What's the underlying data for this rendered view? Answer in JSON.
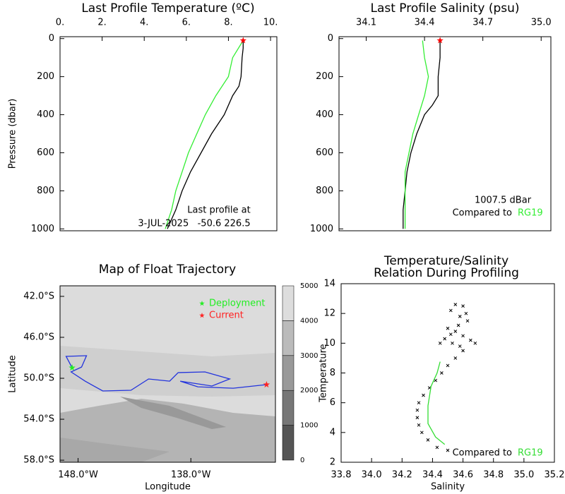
{
  "chart_data": [
    {
      "type": "line",
      "title": "Last Profile Temperature (ºC)",
      "y_label": "Pressure (dbar)",
      "xlim": [
        0,
        10.3
      ],
      "ylim": [
        1010,
        -10
      ],
      "xticks": [
        {
          "value": 0,
          "label": "0."
        },
        {
          "value": 2,
          "label": "2."
        },
        {
          "value": 4,
          "label": "4."
        },
        {
          "value": 6,
          "label": "6."
        },
        {
          "value": 8,
          "label": "8."
        },
        {
          "value": 10,
          "label": "10."
        }
      ],
      "yticks": [
        0,
        200,
        400,
        600,
        800,
        1000
      ],
      "series": [
        {
          "color": "#000000",
          "x": [
            8.7,
            8.7,
            8.65,
            8.6,
            8.5,
            8.2,
            7.8,
            7.2,
            6.7,
            6.2,
            5.8,
            5.5,
            5.1
          ],
          "y": [
            10,
            50,
            100,
            200,
            250,
            300,
            400,
            500,
            600,
            700,
            800,
            900,
            1000
          ]
        },
        {
          "color": "#33ee33",
          "x": [
            8.7,
            8.2,
            8.0,
            7.4,
            6.9,
            6.5,
            6.1,
            5.8,
            5.5,
            5.3,
            5.0
          ],
          "y": [
            10,
            100,
            200,
            300,
            400,
            500,
            600,
            700,
            800,
            900,
            1000
          ]
        }
      ],
      "current_point": {
        "x": 8.7,
        "y": 10,
        "color": "#ff0000"
      },
      "annotations": [
        "Last profile at",
        "3-JUL-2025   -50.6 226.5"
      ]
    },
    {
      "type": "line",
      "title": "Last Profile Salinity (psu)",
      "xlim": [
        33.96,
        35.05
      ],
      "ylim": [
        1010,
        -10
      ],
      "xticks": [
        34.1,
        34.4,
        34.7,
        {
          "value": 35.0,
          "label": "35.0"
        }
      ],
      "yticks": [
        0,
        200,
        400,
        600,
        800,
        1000
      ],
      "series": [
        {
          "color": "#000000",
          "x": [
            34.48,
            34.48,
            34.47,
            34.47,
            34.44,
            34.4,
            34.36,
            34.33,
            34.31,
            34.3,
            34.29,
            34.29
          ],
          "y": [
            10,
            100,
            200,
            300,
            350,
            400,
            500,
            600,
            700,
            800,
            900,
            1000
          ]
        },
        {
          "color": "#33ee33",
          "x": [
            34.39,
            34.4,
            34.42,
            34.4,
            34.37,
            34.34,
            34.32,
            34.3,
            34.3,
            34.3
          ],
          "y": [
            10,
            100,
            200,
            300,
            400,
            500,
            600,
            700,
            800,
            1000
          ]
        }
      ],
      "current_point": {
        "x": 34.48,
        "y": 10,
        "color": "#ff0000"
      },
      "annotations": [
        "1007.5 dBar",
        "Compared to"
      ],
      "reference": "RG19"
    },
    {
      "type": "map",
      "title": "Map of Float Trajectory",
      "x_label": "Longitude",
      "y_label": "Latitude",
      "xlim": [
        -149.6,
        -130.5
      ],
      "ylim": [
        -58.2,
        -40.97
      ],
      "xticks": [
        {
          "value": -148,
          "label": "148.0°W"
        },
        {
          "value": -138,
          "label": "138.0°W"
        }
      ],
      "yticks": [
        {
          "value": -42,
          "label": "42.0°S"
        },
        {
          "value": -46,
          "label": "46.0°S"
        },
        {
          "value": -50,
          "label": "50.0°S"
        },
        {
          "value": -54,
          "label": "54.0°S"
        },
        {
          "value": -58,
          "label": "58.0°S"
        }
      ],
      "trajectory": {
        "color": "#2233dd",
        "lon": [
          -148.53,
          -149.06,
          -147.25,
          -147.69,
          -148.62,
          -147.38,
          -145.81,
          -143.31,
          -141.75,
          -139.88,
          -139.13,
          -136.75,
          -134.56,
          -136.13,
          -138.94,
          -137.38,
          -134.25,
          -131.29
        ],
        "lat": [
          -48.97,
          -47.86,
          -47.79,
          -48.9,
          -49.38,
          -50.28,
          -51.24,
          -51.17,
          -50.07,
          -50.28,
          -49.45,
          -49.38,
          -50.07,
          -50.76,
          -50.28,
          -50.83,
          -50.97,
          -50.62
        ]
      },
      "deployment": {
        "name": "Deployment",
        "color": "#22ee22",
        "lon": -148.53,
        "lat": -48.97
      },
      "current": {
        "name": "Current",
        "color": "#ff2222",
        "lon": -131.29,
        "lat": -50.62
      },
      "colorbar": {
        "ticks": [
          0,
          1000,
          2000,
          3000,
          4000,
          5000
        ],
        "colors": [
          "#555555",
          "#777777",
          "#999999",
          "#bbbbbb",
          "#dddddd"
        ]
      }
    },
    {
      "type": "scatter",
      "title": [
        "Temperature/Salinity",
        "Relation During Profiling"
      ],
      "x_label": "Salinity",
      "y_label": "Temperature",
      "xlim": [
        33.8,
        35.2
      ],
      "ylim": [
        2,
        14
      ],
      "xticks": [
        33.8,
        {
          "value": 34.0,
          "label": "34.0"
        },
        34.2,
        34.4,
        34.6,
        34.8,
        {
          "value": 35.0,
          "label": "35.0"
        },
        35.2
      ],
      "yticks": [
        2,
        4,
        6,
        8,
        10,
        12,
        14
      ],
      "series": [
        {
          "color": "#000000",
          "marker": "x",
          "x": [
            34.68,
            34.6,
            34.55,
            34.5,
            34.46,
            34.42,
            34.38,
            34.34,
            34.31,
            34.3,
            34.3,
            34.31,
            34.33,
            34.37,
            34.43,
            34.5,
            34.55,
            34.6,
            34.52,
            34.58,
            34.63,
            34.5,
            34.55,
            34.6,
            34.48,
            34.65,
            34.53,
            34.58,
            34.62,
            34.57,
            34.52,
            34.45
          ],
          "y": [
            10.0,
            9.5,
            9.0,
            8.5,
            8.0,
            7.5,
            7.0,
            6.5,
            6.0,
            5.5,
            5.0,
            4.5,
            4.0,
            3.5,
            3.0,
            2.8,
            12.6,
            12.5,
            12.2,
            11.8,
            11.5,
            11.0,
            10.8,
            10.5,
            10.3,
            10.2,
            10.0,
            9.8,
            12.0,
            11.2,
            10.6,
            10.0
          ]
        },
        {
          "color": "#33dd33",
          "marker": "line",
          "x": [
            34.45,
            34.43,
            34.39,
            34.37,
            34.37,
            34.42,
            34.48
          ],
          "y": [
            8.76,
            8.0,
            7.1,
            5.8,
            4.6,
            3.7,
            3.2
          ]
        }
      ],
      "annotations": [
        "Compared to"
      ],
      "reference": "RG19"
    }
  ]
}
